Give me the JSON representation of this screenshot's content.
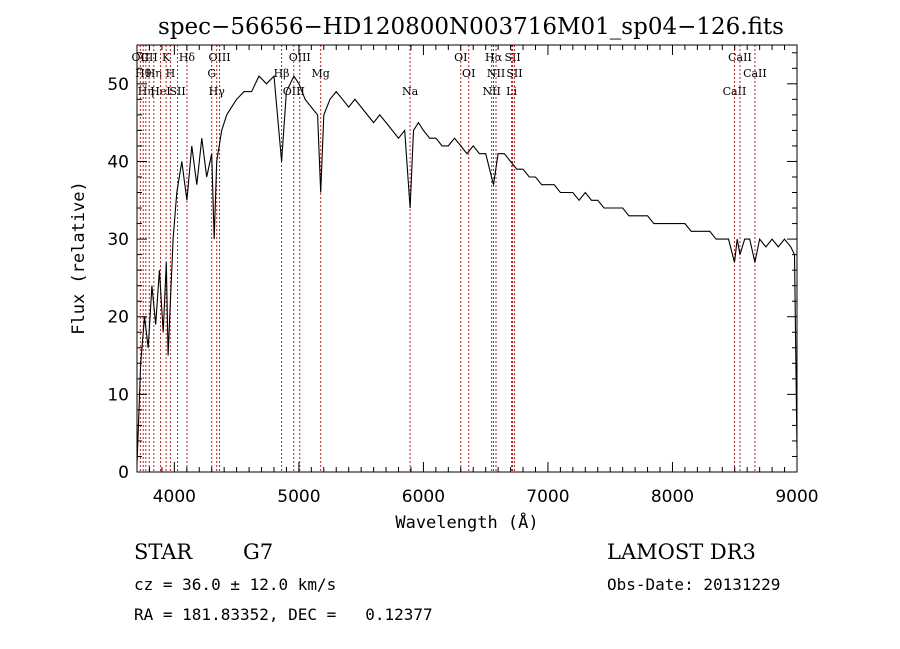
{
  "chart_data": {
    "type": "line",
    "title": "spec−56656−HD120800N003716M01_sp04−126.fits",
    "xlabel": "Wavelength (Å)",
    "ylabel": "Flux (relative)",
    "xlim": [
      3700,
      9000
    ],
    "ylim": [
      0,
      55
    ],
    "xticks": [
      4000,
      5000,
      6000,
      7000,
      8000,
      9000
    ],
    "yticks": [
      0,
      10,
      20,
      30,
      40,
      50
    ],
    "grid": false,
    "line_color": "#000000",
    "marker_color": "#b22222",
    "series": [
      {
        "x": [
          3700,
          3730,
          3760,
          3790,
          3820,
          3850,
          3880,
          3910,
          3935,
          3950,
          3968,
          3990,
          4020,
          4060,
          4101,
          4140,
          4180,
          4220,
          4260,
          4300,
          4320,
          4340,
          4380,
          4420,
          4460,
          4500,
          4560,
          4620,
          4680,
          4740,
          4800,
          4861,
          4900,
          4960,
          5000,
          5050,
          5100,
          5150,
          5175,
          5200,
          5250,
          5300,
          5350,
          5400,
          5450,
          5500,
          5550,
          5600,
          5650,
          5700,
          5750,
          5800,
          5850,
          5893,
          5920,
          5960,
          6000,
          6050,
          6100,
          6150,
          6200,
          6250,
          6300,
          6350,
          6400,
          6450,
          6500,
          6563,
          6600,
          6650,
          6700,
          6750,
          6800,
          6850,
          6900,
          6950,
          7000,
          7050,
          7100,
          7150,
          7200,
          7250,
          7300,
          7350,
          7400,
          7450,
          7500,
          7550,
          7600,
          7650,
          7700,
          7750,
          7800,
          7850,
          7900,
          7950,
          8000,
          8050,
          8100,
          8150,
          8200,
          8250,
          8300,
          8350,
          8400,
          8450,
          8498,
          8520,
          8542,
          8580,
          8620,
          8662,
          8700,
          8750,
          8800,
          8850,
          8900,
          8950,
          8980,
          9000
        ],
        "y": [
          1,
          14,
          20,
          16,
          24,
          19,
          26,
          18,
          27,
          15,
          22,
          30,
          36,
          40,
          35,
          42,
          37,
          43,
          38,
          41,
          30,
          40,
          44,
          46,
          47,
          48,
          49,
          49,
          51,
          50,
          51,
          40,
          49,
          51,
          50,
          48,
          47,
          46,
          36,
          46,
          48,
          49,
          48,
          47,
          48,
          47,
          46,
          45,
          46,
          45,
          44,
          43,
          44,
          34,
          44,
          45,
          44,
          43,
          43,
          42,
          42,
          43,
          42,
          41,
          42,
          41,
          41,
          37,
          41,
          41,
          40,
          39,
          39,
          38,
          38,
          37,
          37,
          37,
          36,
          36,
          36,
          35,
          36,
          35,
          35,
          34,
          34,
          34,
          34,
          33,
          33,
          33,
          33,
          32,
          32,
          32,
          32,
          32,
          32,
          31,
          31,
          31,
          31,
          30,
          30,
          30,
          27,
          30,
          28,
          30,
          30,
          27,
          30,
          29,
          30,
          29,
          30,
          29,
          28,
          3
        ]
      }
    ],
    "lines": [
      {
        "x": 3727,
        "label": "OII"
      },
      {
        "x": 3750,
        "label": "Hθ"
      },
      {
        "x": 3771,
        "label": "Hη"
      },
      {
        "x": 3798,
        "label": "CII"
      },
      {
        "x": 3835,
        "label": "Hη"
      },
      {
        "x": 3889,
        "label": "HeI"
      },
      {
        "x": 3934,
        "label": "K"
      },
      {
        "x": 3968,
        "label": "H"
      },
      {
        "x": 4026,
        "label": "SII"
      },
      {
        "x": 4101,
        "label": "Hδ"
      },
      {
        "x": 4300,
        "label": "G"
      },
      {
        "x": 4340,
        "label": "Hγ"
      },
      {
        "x": 4363,
        "label": "OIII"
      },
      {
        "x": 4861,
        "label": "Hβ"
      },
      {
        "x": 4959,
        "label": "OIII"
      },
      {
        "x": 5007,
        "label": "OIII"
      },
      {
        "x": 5175,
        "label": "Mg"
      },
      {
        "x": 5893,
        "label": "Na"
      },
      {
        "x": 6300,
        "label": "OI"
      },
      {
        "x": 6364,
        "label": "OI"
      },
      {
        "x": 6548,
        "label": "NII"
      },
      {
        "x": 6563,
        "label": "Hα"
      },
      {
        "x": 6583,
        "label": "NII"
      },
      {
        "x": 6708,
        "label": "Li"
      },
      {
        "x": 6716,
        "label": "SII"
      },
      {
        "x": 6731,
        "label": "SII"
      },
      {
        "x": 8498,
        "label": "CaII"
      },
      {
        "x": 8542,
        "label": "CaII"
      },
      {
        "x": 8662,
        "label": "CaII"
      }
    ]
  },
  "info": {
    "object_type": "STAR",
    "subclass": "G7",
    "survey": "LAMOST DR3",
    "redshift": "cz = 36.0 ± 12.0 km/s",
    "obs_date": "Obs-Date: 20131229",
    "coordinates": "RA = 181.83352, DEC =   0.12377"
  }
}
